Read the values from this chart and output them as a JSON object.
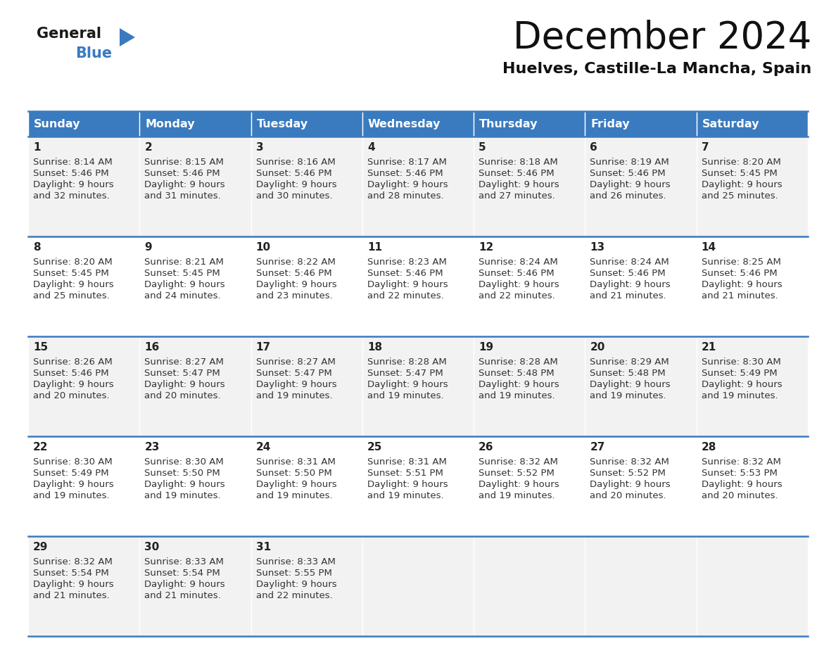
{
  "title": "December 2024",
  "subtitle": "Huelves, Castille-La Mancha, Spain",
  "header_color": "#3a7abf",
  "header_text_color": "#ffffff",
  "background_color": "#ffffff",
  "cell_bg_light": "#f2f2f2",
  "cell_bg_white": "#ffffff",
  "border_color": "#3a7abf",
  "text_color": "#333333",
  "day_num_color": "#222222",
  "day_headers": [
    "Sunday",
    "Monday",
    "Tuesday",
    "Wednesday",
    "Thursday",
    "Friday",
    "Saturday"
  ],
  "days": [
    {
      "day": 1,
      "col": 0,
      "row": 0,
      "sunrise": "8:14 AM",
      "sunset": "5:46 PM",
      "daylight_h": "9 hours",
      "daylight_m": "32 minutes."
    },
    {
      "day": 2,
      "col": 1,
      "row": 0,
      "sunrise": "8:15 AM",
      "sunset": "5:46 PM",
      "daylight_h": "9 hours",
      "daylight_m": "31 minutes."
    },
    {
      "day": 3,
      "col": 2,
      "row": 0,
      "sunrise": "8:16 AM",
      "sunset": "5:46 PM",
      "daylight_h": "9 hours",
      "daylight_m": "30 minutes."
    },
    {
      "day": 4,
      "col": 3,
      "row": 0,
      "sunrise": "8:17 AM",
      "sunset": "5:46 PM",
      "daylight_h": "9 hours",
      "daylight_m": "28 minutes."
    },
    {
      "day": 5,
      "col": 4,
      "row": 0,
      "sunrise": "8:18 AM",
      "sunset": "5:46 PM",
      "daylight_h": "9 hours",
      "daylight_m": "27 minutes."
    },
    {
      "day": 6,
      "col": 5,
      "row": 0,
      "sunrise": "8:19 AM",
      "sunset": "5:46 PM",
      "daylight_h": "9 hours",
      "daylight_m": "26 minutes."
    },
    {
      "day": 7,
      "col": 6,
      "row": 0,
      "sunrise": "8:20 AM",
      "sunset": "5:45 PM",
      "daylight_h": "9 hours",
      "daylight_m": "25 minutes."
    },
    {
      "day": 8,
      "col": 0,
      "row": 1,
      "sunrise": "8:20 AM",
      "sunset": "5:45 PM",
      "daylight_h": "9 hours",
      "daylight_m": "25 minutes."
    },
    {
      "day": 9,
      "col": 1,
      "row": 1,
      "sunrise": "8:21 AM",
      "sunset": "5:45 PM",
      "daylight_h": "9 hours",
      "daylight_m": "24 minutes."
    },
    {
      "day": 10,
      "col": 2,
      "row": 1,
      "sunrise": "8:22 AM",
      "sunset": "5:46 PM",
      "daylight_h": "9 hours",
      "daylight_m": "23 minutes."
    },
    {
      "day": 11,
      "col": 3,
      "row": 1,
      "sunrise": "8:23 AM",
      "sunset": "5:46 PM",
      "daylight_h": "9 hours",
      "daylight_m": "22 minutes."
    },
    {
      "day": 12,
      "col": 4,
      "row": 1,
      "sunrise": "8:24 AM",
      "sunset": "5:46 PM",
      "daylight_h": "9 hours",
      "daylight_m": "22 minutes."
    },
    {
      "day": 13,
      "col": 5,
      "row": 1,
      "sunrise": "8:24 AM",
      "sunset": "5:46 PM",
      "daylight_h": "9 hours",
      "daylight_m": "21 minutes."
    },
    {
      "day": 14,
      "col": 6,
      "row": 1,
      "sunrise": "8:25 AM",
      "sunset": "5:46 PM",
      "daylight_h": "9 hours",
      "daylight_m": "21 minutes."
    },
    {
      "day": 15,
      "col": 0,
      "row": 2,
      "sunrise": "8:26 AM",
      "sunset": "5:46 PM",
      "daylight_h": "9 hours",
      "daylight_m": "20 minutes."
    },
    {
      "day": 16,
      "col": 1,
      "row": 2,
      "sunrise": "8:27 AM",
      "sunset": "5:47 PM",
      "daylight_h": "9 hours",
      "daylight_m": "20 minutes."
    },
    {
      "day": 17,
      "col": 2,
      "row": 2,
      "sunrise": "8:27 AM",
      "sunset": "5:47 PM",
      "daylight_h": "9 hours",
      "daylight_m": "19 minutes."
    },
    {
      "day": 18,
      "col": 3,
      "row": 2,
      "sunrise": "8:28 AM",
      "sunset": "5:47 PM",
      "daylight_h": "9 hours",
      "daylight_m": "19 minutes."
    },
    {
      "day": 19,
      "col": 4,
      "row": 2,
      "sunrise": "8:28 AM",
      "sunset": "5:48 PM",
      "daylight_h": "9 hours",
      "daylight_m": "19 minutes."
    },
    {
      "day": 20,
      "col": 5,
      "row": 2,
      "sunrise": "8:29 AM",
      "sunset": "5:48 PM",
      "daylight_h": "9 hours",
      "daylight_m": "19 minutes."
    },
    {
      "day": 21,
      "col": 6,
      "row": 2,
      "sunrise": "8:30 AM",
      "sunset": "5:49 PM",
      "daylight_h": "9 hours",
      "daylight_m": "19 minutes."
    },
    {
      "day": 22,
      "col": 0,
      "row": 3,
      "sunrise": "8:30 AM",
      "sunset": "5:49 PM",
      "daylight_h": "9 hours",
      "daylight_m": "19 minutes."
    },
    {
      "day": 23,
      "col": 1,
      "row": 3,
      "sunrise": "8:30 AM",
      "sunset": "5:50 PM",
      "daylight_h": "9 hours",
      "daylight_m": "19 minutes."
    },
    {
      "day": 24,
      "col": 2,
      "row": 3,
      "sunrise": "8:31 AM",
      "sunset": "5:50 PM",
      "daylight_h": "9 hours",
      "daylight_m": "19 minutes."
    },
    {
      "day": 25,
      "col": 3,
      "row": 3,
      "sunrise": "8:31 AM",
      "sunset": "5:51 PM",
      "daylight_h": "9 hours",
      "daylight_m": "19 minutes."
    },
    {
      "day": 26,
      "col": 4,
      "row": 3,
      "sunrise": "8:32 AM",
      "sunset": "5:52 PM",
      "daylight_h": "9 hours",
      "daylight_m": "19 minutes."
    },
    {
      "day": 27,
      "col": 5,
      "row": 3,
      "sunrise": "8:32 AM",
      "sunset": "5:52 PM",
      "daylight_h": "9 hours",
      "daylight_m": "20 minutes."
    },
    {
      "day": 28,
      "col": 6,
      "row": 3,
      "sunrise": "8:32 AM",
      "sunset": "5:53 PM",
      "daylight_h": "9 hours",
      "daylight_m": "20 minutes."
    },
    {
      "day": 29,
      "col": 0,
      "row": 4,
      "sunrise": "8:32 AM",
      "sunset": "5:54 PM",
      "daylight_h": "9 hours",
      "daylight_m": "21 minutes."
    },
    {
      "day": 30,
      "col": 1,
      "row": 4,
      "sunrise": "8:33 AM",
      "sunset": "5:54 PM",
      "daylight_h": "9 hours",
      "daylight_m": "21 minutes."
    },
    {
      "day": 31,
      "col": 2,
      "row": 4,
      "sunrise": "8:33 AM",
      "sunset": "5:55 PM",
      "daylight_h": "9 hours",
      "daylight_m": "22 minutes."
    }
  ],
  "num_rows": 5,
  "num_cols": 7
}
